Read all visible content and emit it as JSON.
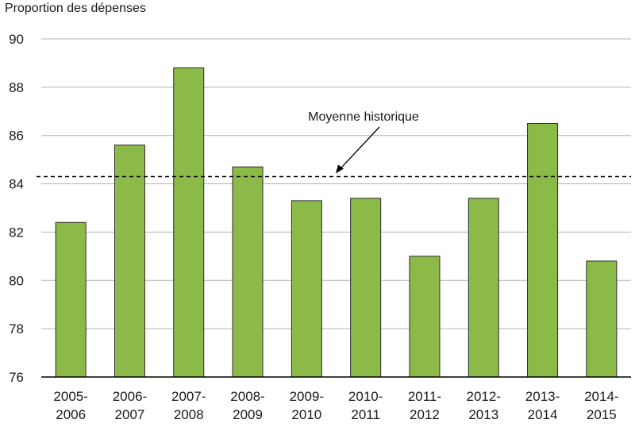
{
  "chart_data": {
    "type": "bar",
    "ylabel": "Proportion des dépenses",
    "xlabel": "",
    "ylim": [
      76,
      90
    ],
    "yticks": [
      76,
      78,
      80,
      82,
      84,
      86,
      88,
      90
    ],
    "grid": true,
    "categories": [
      [
        "2005-",
        "2006"
      ],
      [
        "2006-",
        "2007"
      ],
      [
        "2007-",
        "2008"
      ],
      [
        "2008-",
        "2009"
      ],
      [
        "2009-",
        "2010"
      ],
      [
        "2010-",
        "2011"
      ],
      [
        "2011-",
        "2012"
      ],
      [
        "2012-",
        "2013"
      ],
      [
        "2013-",
        "2014"
      ],
      [
        "2014-",
        "2015"
      ]
    ],
    "values": [
      82.4,
      85.6,
      88.8,
      84.7,
      83.3,
      83.4,
      81.0,
      83.4,
      86.5,
      80.8
    ],
    "reference_line": {
      "label": "Moyenne historique",
      "value": 84.3,
      "style": "dashed"
    },
    "colors": {
      "bar": "#8cba48",
      "bar_stroke": "#2b2b2b",
      "grid": "#b3b3b3",
      "axis": "#000000"
    }
  }
}
